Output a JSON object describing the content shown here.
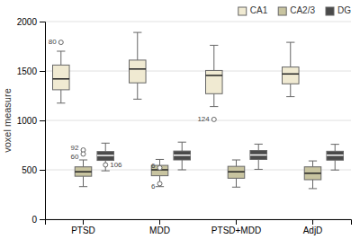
{
  "chart_data": {
    "type": "box",
    "ylabel": "voxel measure",
    "categories": [
      "PTSD",
      "MDD",
      "PTSD+MDD",
      "AdjD"
    ],
    "series": [
      {
        "name": "CA1",
        "color": "#f0ead2",
        "q1": [
          1310,
          1380,
          1270,
          1370
        ],
        "median": [
          1420,
          1520,
          1455,
          1470
        ],
        "q3": [
          1560,
          1610,
          1505,
          1540
        ],
        "whislo": [
          1175,
          1215,
          1140,
          1240
        ],
        "whishi": [
          1700,
          1890,
          1760,
          1790
        ],
        "fliers": [
          [
            1790
          ],
          [],
          [
            1010
          ],
          []
        ]
      },
      {
        "name": "CA2/3",
        "color": "#c8c4a0",
        "q1": [
          435,
          440,
          415,
          400
        ],
        "median": [
          480,
          500,
          480,
          465
        ],
        "q3": [
          530,
          545,
          535,
          530
        ],
        "whislo": [
          330,
          330,
          325,
          310
        ],
        "whishi": [
          600,
          605,
          600,
          590
        ],
        "fliers": [
          [
            700,
            660
          ],
          [
            360,
            520
          ],
          [],
          []
        ]
      },
      {
        "name": "DG",
        "color": "#4a4a4a",
        "q1": [
          595,
          600,
          605,
          598
        ],
        "median": [
          645,
          648,
          650,
          648
        ],
        "q3": [
          685,
          690,
          695,
          688
        ],
        "whislo": [
          490,
          500,
          505,
          498
        ],
        "whishi": [
          770,
          780,
          760,
          758
        ],
        "fliers": [
          [
            550
          ],
          [],
          [],
          []
        ]
      }
    ],
    "annotations": [
      {
        "text": "80",
        "series": "CA1",
        "category": "PTSD",
        "y": 1790
      },
      {
        "text": "124",
        "series": "CA1",
        "category": "PTSD+MDD",
        "y": 1010
      },
      {
        "text": "92",
        "series": "CA2/3",
        "category": "PTSD",
        "y": 700
      },
      {
        "text": "60",
        "series": "CA2/3",
        "category": "PTSD",
        "y": 660
      },
      {
        "text": "106",
        "series": "DG",
        "category": "PTSD",
        "y": 550
      },
      {
        "text": "6",
        "series": "CA2/3",
        "category": "MDD",
        "y": 360
      },
      {
        "text": "6",
        "series": "CA2/3",
        "category": "MDD",
        "y": 520
      }
    ],
    "ylim": [
      0,
      2000
    ],
    "yticks": [
      0,
      500,
      1000,
      1500,
      2000
    ],
    "grid": true,
    "legend": "upper right"
  }
}
